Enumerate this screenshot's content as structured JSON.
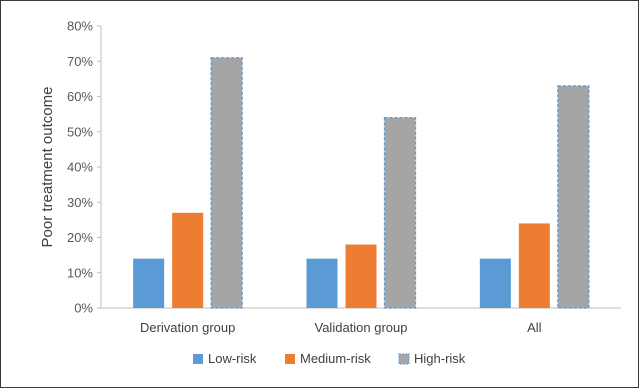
{
  "chart_data": {
    "type": "bar",
    "title": "",
    "xlabel": "",
    "ylabel": "Poor treatment outcome",
    "ylim": [
      0,
      0.8
    ],
    "yticks": [
      "0%",
      "10%",
      "20%",
      "30%",
      "40%",
      "50%",
      "60%",
      "70%",
      "80%"
    ],
    "categories": [
      "Derivation group",
      "Validation group",
      "All"
    ],
    "series": [
      {
        "name": "Low-risk",
        "color": "#5B9BD5",
        "values": [
          0.14,
          0.14,
          0.14
        ]
      },
      {
        "name": "Medium-risk",
        "color": "#ED7D31",
        "values": [
          0.27,
          0.18,
          0.24
        ]
      },
      {
        "name": "High-risk",
        "color": "#A5A5A5",
        "values": [
          0.71,
          0.54,
          0.63
        ]
      }
    ],
    "legend_position": "bottom",
    "grid": false
  }
}
